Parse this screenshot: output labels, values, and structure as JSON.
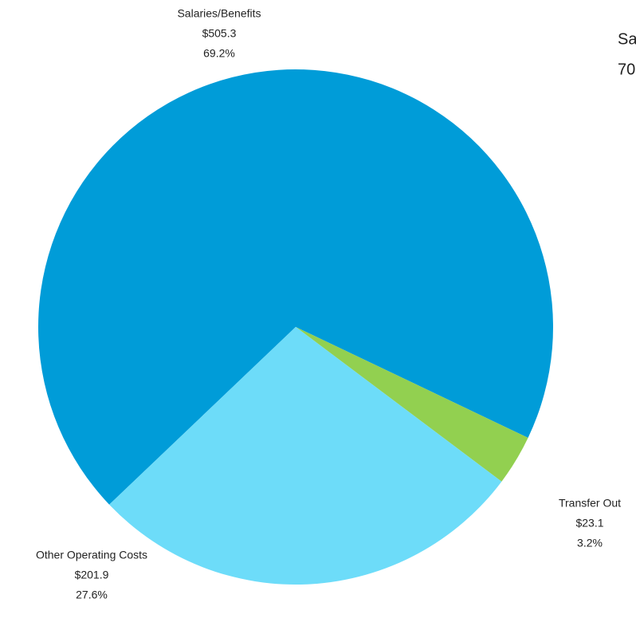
{
  "chart_data": {
    "type": "pie",
    "categories": [
      "Salaries/Benefits",
      "Transfer Out",
      "Other Operating Costs"
    ],
    "values": [
      505.3,
      23.1,
      201.9
    ],
    "value_labels": [
      "$505.3",
      "$23.1",
      "$201.9"
    ],
    "percent_labels": [
      "69.2%",
      "3.2%",
      "27.6%"
    ],
    "colors": [
      "#009cd8",
      "#92d050",
      "#6ddcf9"
    ],
    "annotations": [
      "Sa",
      "70"
    ]
  }
}
